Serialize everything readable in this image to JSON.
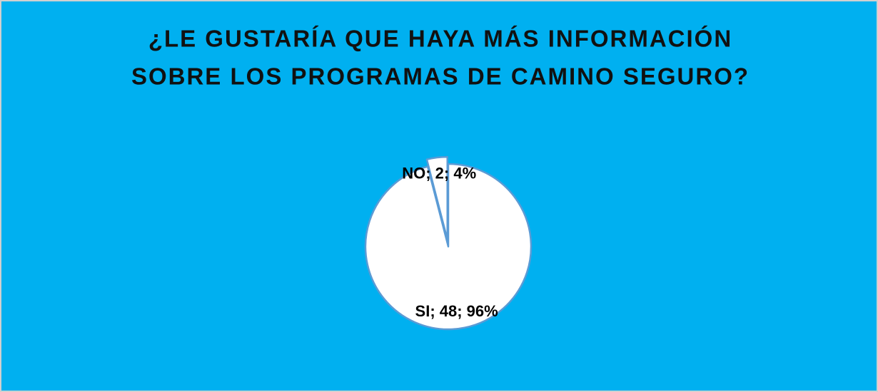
{
  "chart_data": {
    "type": "pie",
    "title_lines": [
      "¿LE GUSTARÍA QUE HAYA MÁS INFORMACIÓN",
      "SOBRE LOS PROGRAMAS DE CAMINO SEGURO?"
    ],
    "categories": [
      "SI",
      "NO"
    ],
    "values": [
      48,
      2
    ],
    "value_labels": [
      "SI; 48; 96%",
      "NO; 2; 4%"
    ],
    "colors": [
      "#ffffff",
      "#ffffff"
    ],
    "background": "#00b0f0",
    "exploded": [
      false,
      true
    ]
  }
}
